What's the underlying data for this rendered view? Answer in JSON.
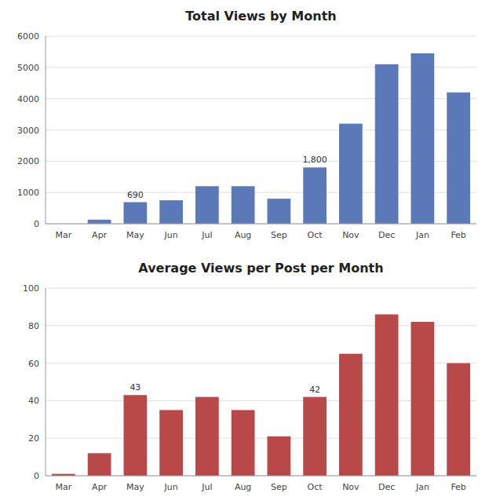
{
  "chart_data": [
    {
      "type": "bar",
      "title": "Total Views by Month",
      "categories": [
        "Mar",
        "Apr",
        "May",
        "Jun",
        "Jul",
        "Aug",
        "Sep",
        "Oct",
        "Nov",
        "Dec",
        "Jan",
        "Feb"
      ],
      "values": [
        0,
        130,
        690,
        750,
        1200,
        1200,
        800,
        1800,
        3200,
        5100,
        5450,
        4200
      ],
      "color": "#5B78B8",
      "ylim": [
        0,
        6000
      ],
      "yticks": [
        0,
        1000,
        2000,
        3000,
        4000,
        5000,
        6000
      ],
      "grid": true,
      "annotations": [
        {
          "category": "May",
          "text": "690"
        },
        {
          "category": "Oct",
          "text": "1,800"
        }
      ]
    },
    {
      "type": "bar",
      "title": "Average Views per Post per Month",
      "categories": [
        "Mar",
        "Apr",
        "May",
        "Jun",
        "Jul",
        "Aug",
        "Sep",
        "Oct",
        "Nov",
        "Dec",
        "Jan",
        "Feb"
      ],
      "values": [
        1,
        12,
        43,
        35,
        42,
        35,
        21,
        42,
        65,
        86,
        82,
        60
      ],
      "color": "#B94848",
      "ylim": [
        0,
        100
      ],
      "yticks": [
        0,
        20,
        40,
        60,
        80,
        100
      ],
      "grid": true,
      "annotations": [
        {
          "category": "May",
          "text": "43"
        },
        {
          "category": "Oct",
          "text": "42"
        }
      ]
    }
  ]
}
